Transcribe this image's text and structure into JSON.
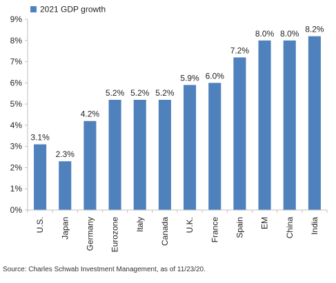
{
  "chart_data": {
    "type": "bar",
    "title": "",
    "xlabel": "",
    "ylabel": "",
    "legend": {
      "position": "top-left",
      "label": "2021 GDP growth"
    },
    "categories": [
      "U.S.",
      "Japan",
      "Germany",
      "Eurozone",
      "Italy",
      "Canada",
      "U.K.",
      "France",
      "Spain",
      "EM",
      "China",
      "India"
    ],
    "series": [
      {
        "name": "2021 GDP growth",
        "values": [
          3.1,
          2.3,
          4.2,
          5.2,
          5.2,
          5.2,
          5.9,
          6.0,
          7.2,
          8.0,
          8.0,
          8.2
        ]
      }
    ],
    "data_labels": [
      "3.1%",
      "2.3%",
      "4.2%",
      "5.2%",
      "5.2%",
      "5.2%",
      "5.9%",
      "6.0%",
      "7.2%",
      "8.0%",
      "8.0%",
      "8.2%"
    ],
    "ylim": [
      0,
      9
    ],
    "yticks": [
      0,
      1,
      2,
      3,
      4,
      5,
      6,
      7,
      8,
      9
    ],
    "ytick_labels": [
      "0%",
      "1%",
      "2%",
      "3%",
      "4%",
      "5%",
      "6%",
      "7%",
      "8%",
      "9%"
    ],
    "grid": false,
    "color": "#4f81bd"
  },
  "source": "Source: Charles Schwab Investment Management, as of 11/23/20."
}
